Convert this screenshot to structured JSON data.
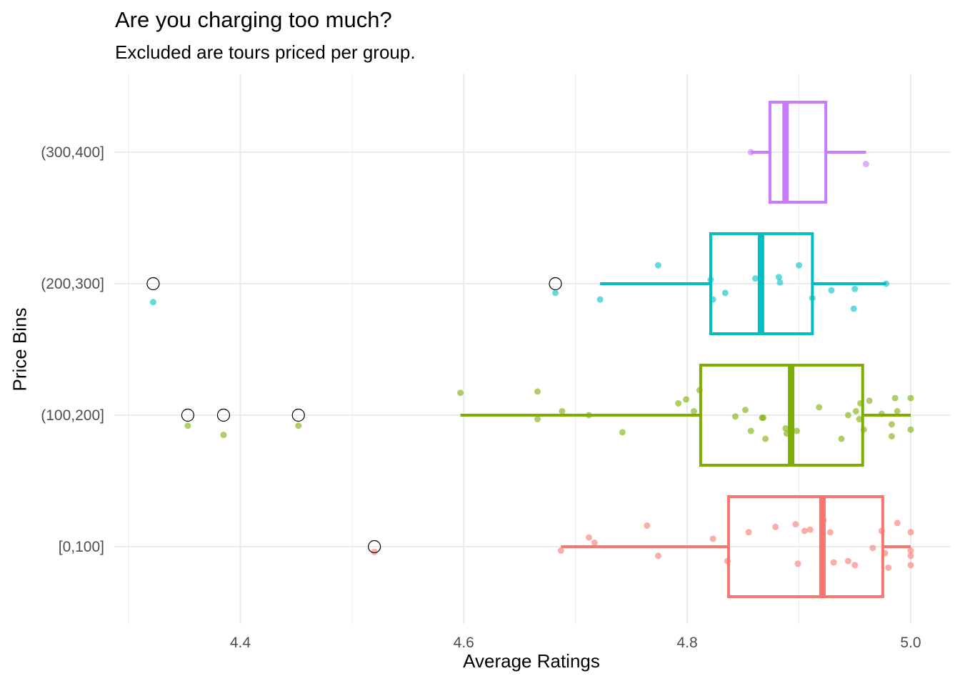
{
  "chart_data": {
    "type": "boxplot",
    "title": "Are you charging too much?",
    "subtitle": "Excluded are tours priced per group.",
    "xlabel": "Average Ratings",
    "ylabel": "Price Bins",
    "xlim": [
      4.27,
      5.02
    ],
    "x_ticks": [
      4.4,
      4.6,
      4.8,
      5.0
    ],
    "x_tick_labels": [
      "4.4",
      "4.6",
      "4.8",
      "5.0"
    ],
    "categories": [
      "[0,100]",
      "(100,200]",
      "(200,300]",
      "(300,400]"
    ],
    "grid": true,
    "legend": "none",
    "groups": [
      {
        "category": "[0,100]",
        "color": "#F8766D",
        "box": {
          "whisker_low": 4.687,
          "q1": 4.837,
          "median": 4.921,
          "q3": 4.975,
          "whisker_high": 5.0
        },
        "outliers": [
          4.52
        ],
        "points": [
          {
            "x": 4.52,
            "y": 0.96
          },
          {
            "x": 4.687,
            "y": 0.97
          },
          {
            "x": 4.712,
            "y": 1.07
          },
          {
            "x": 4.717,
            "y": 1.03
          },
          {
            "x": 4.764,
            "y": 1.16
          },
          {
            "x": 4.774,
            "y": 0.93
          },
          {
            "x": 4.823,
            "y": 1.06
          },
          {
            "x": 4.836,
            "y": 0.89
          },
          {
            "x": 4.855,
            "y": 1.11
          },
          {
            "x": 4.879,
            "y": 1.15
          },
          {
            "x": 4.897,
            "y": 1.17
          },
          {
            "x": 4.899,
            "y": 0.87
          },
          {
            "x": 4.905,
            "y": 1.12
          },
          {
            "x": 4.91,
            "y": 1.13
          },
          {
            "x": 4.921,
            "y": 1.2
          },
          {
            "x": 4.922,
            "y": 1.2
          },
          {
            "x": 4.928,
            "y": 1.11
          },
          {
            "x": 4.931,
            "y": 0.88
          },
          {
            "x": 4.944,
            "y": 0.89
          },
          {
            "x": 4.95,
            "y": 0.86
          },
          {
            "x": 4.966,
            "y": 0.99
          },
          {
            "x": 4.974,
            "y": 1.12
          },
          {
            "x": 4.977,
            "y": 0.95
          },
          {
            "x": 4.98,
            "y": 0.84
          },
          {
            "x": 4.988,
            "y": 1.18
          },
          {
            "x": 5.0,
            "y": 1.11
          },
          {
            "x": 5.0,
            "y": 0.97
          },
          {
            "x": 5.0,
            "y": 0.93
          },
          {
            "x": 5.0,
            "y": 0.86
          }
        ]
      },
      {
        "category": "(100,200]",
        "color": "#7CAE00",
        "box": {
          "whisker_low": 4.597,
          "q1": 4.812,
          "median": 4.893,
          "q3": 4.957,
          "whisker_high": 5.0
        },
        "outliers": [
          4.353,
          4.385,
          4.452
        ],
        "points": [
          {
            "x": 4.353,
            "y": 1.92
          },
          {
            "x": 4.385,
            "y": 1.85
          },
          {
            "x": 4.452,
            "y": 1.92
          },
          {
            "x": 4.597,
            "y": 2.17
          },
          {
            "x": 4.666,
            "y": 2.18
          },
          {
            "x": 4.666,
            "y": 1.97
          },
          {
            "x": 4.688,
            "y": 2.03
          },
          {
            "x": 4.712,
            "y": 2.0
          },
          {
            "x": 4.742,
            "y": 1.87
          },
          {
            "x": 4.792,
            "y": 2.09
          },
          {
            "x": 4.799,
            "y": 2.12
          },
          {
            "x": 4.806,
            "y": 2.03
          },
          {
            "x": 4.811,
            "y": 2.19
          },
          {
            "x": 4.843,
            "y": 1.99
          },
          {
            "x": 4.852,
            "y": 2.04
          },
          {
            "x": 4.857,
            "y": 1.88
          },
          {
            "x": 4.867,
            "y": 1.98
          },
          {
            "x": 4.868,
            "y": 1.98
          },
          {
            "x": 4.87,
            "y": 1.82
          },
          {
            "x": 4.888,
            "y": 1.9
          },
          {
            "x": 4.889,
            "y": 1.86
          },
          {
            "x": 4.898,
            "y": 1.88
          },
          {
            "x": 4.918,
            "y": 2.06
          },
          {
            "x": 4.938,
            "y": 1.82
          },
          {
            "x": 4.944,
            "y": 2.0
          },
          {
            "x": 4.951,
            "y": 2.03
          },
          {
            "x": 4.954,
            "y": 1.97
          },
          {
            "x": 4.955,
            "y": 2.09
          },
          {
            "x": 4.958,
            "y": 1.89
          },
          {
            "x": 4.963,
            "y": 2.11
          },
          {
            "x": 4.974,
            "y": 2.01
          },
          {
            "x": 4.983,
            "y": 1.93
          },
          {
            "x": 4.986,
            "y": 2.13
          },
          {
            "x": 4.983,
            "y": 1.84
          },
          {
            "x": 4.988,
            "y": 2.03
          },
          {
            "x": 5.0,
            "y": 2.13
          },
          {
            "x": 5.0,
            "y": 1.89
          }
        ]
      },
      {
        "category": "(200,300]",
        "color": "#00BFC4",
        "box": {
          "whisker_low": 4.722,
          "q1": 4.821,
          "median": 4.866,
          "q3": 4.912,
          "whisker_high": 4.978
        },
        "outliers": [
          4.322,
          4.682
        ],
        "points": [
          {
            "x": 4.322,
            "y": 2.86
          },
          {
            "x": 4.682,
            "y": 2.93
          },
          {
            "x": 4.722,
            "y": 2.88
          },
          {
            "x": 4.774,
            "y": 3.14
          },
          {
            "x": 4.821,
            "y": 3.03
          },
          {
            "x": 4.823,
            "y": 2.88
          },
          {
            "x": 4.834,
            "y": 2.93
          },
          {
            "x": 4.861,
            "y": 3.04
          },
          {
            "x": 4.882,
            "y": 3.05
          },
          {
            "x": 4.883,
            "y": 3.01
          },
          {
            "x": 4.9,
            "y": 3.14
          },
          {
            "x": 4.912,
            "y": 2.89
          },
          {
            "x": 4.929,
            "y": 2.95
          },
          {
            "x": 4.949,
            "y": 2.81
          },
          {
            "x": 4.95,
            "y": 2.96
          },
          {
            "x": 4.978,
            "y": 3.0
          }
        ]
      },
      {
        "category": "(300,400]",
        "color": "#C77CFF",
        "box": {
          "whisker_low": 4.857,
          "q1": 4.874,
          "median": 4.888,
          "q3": 4.924,
          "whisker_high": 4.96
        },
        "outliers": [],
        "points": [
          {
            "x": 4.857,
            "y": 4.0
          },
          {
            "x": 4.96,
            "y": 3.91
          }
        ]
      }
    ]
  }
}
